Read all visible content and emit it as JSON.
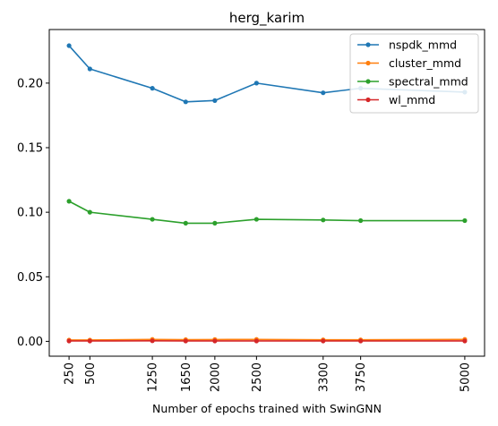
{
  "chart_data": {
    "type": "line",
    "title": "herg_karim",
    "xlabel": "Number of epochs trained with SwinGNN",
    "ylabel": "",
    "x": [
      250,
      500,
      1250,
      1650,
      2000,
      2500,
      3300,
      3750,
      5000
    ],
    "x_tick_labels": [
      "250",
      "500",
      "1250",
      "1650",
      "2000",
      "2500",
      "3300",
      "3750",
      "5000"
    ],
    "y_ticks": [
      0.0,
      0.05,
      0.1,
      0.15,
      0.2
    ],
    "y_tick_labels": [
      "0.00",
      "0.05",
      "0.10",
      "0.15",
      "0.20"
    ],
    "ylim": [
      -0.0115,
      0.2415
    ],
    "xlim": [
      12.5,
      5237.5
    ],
    "grid": false,
    "legend_position": "top-right",
    "series": [
      {
        "name": "nspdk_mmd",
        "color": "#1f77b4",
        "values": [
          0.229,
          0.211,
          0.196,
          0.1855,
          0.1865,
          0.2,
          0.1925,
          0.196,
          0.193
        ]
      },
      {
        "name": "cluster_mmd",
        "color": "#ff7f0e",
        "values": [
          0.001,
          0.001,
          0.0015,
          0.0013,
          0.0014,
          0.0015,
          0.0012,
          0.0012,
          0.0015
        ]
      },
      {
        "name": "spectral_mmd",
        "color": "#2ca02c",
        "values": [
          0.1085,
          0.1,
          0.0945,
          0.0915,
          0.0915,
          0.0945,
          0.094,
          0.0935,
          0.0935
        ]
      },
      {
        "name": "wl_mmd",
        "color": "#d62728",
        "values": [
          0.0003,
          0.0003,
          0.0004,
          0.0003,
          0.0003,
          0.0003,
          0.0003,
          0.0003,
          0.0003
        ]
      }
    ]
  }
}
